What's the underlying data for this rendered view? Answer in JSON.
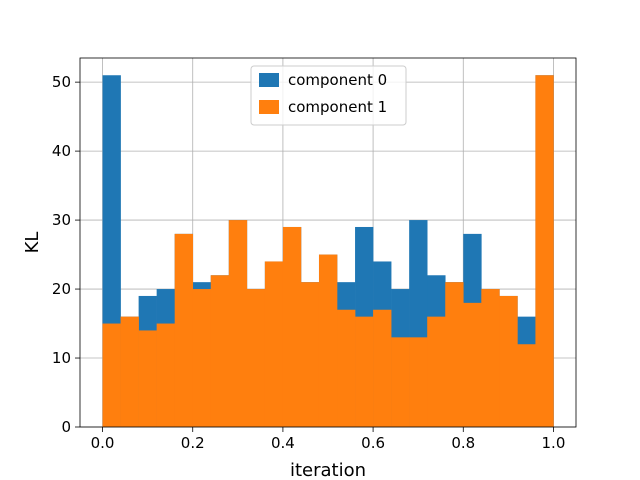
{
  "chart_data": {
    "type": "bar",
    "subtype": "overlapping-histogram",
    "xlabel": "iteration",
    "ylabel": "KL",
    "xlim": [
      -0.05,
      1.05
    ],
    "ylim": [
      0,
      53.5
    ],
    "xticks": [
      "0.0",
      "0.2",
      "0.4",
      "0.6",
      "0.8",
      "1.0"
    ],
    "yticks": [
      "0",
      "10",
      "20",
      "30",
      "40",
      "50"
    ],
    "grid": true,
    "legend": "top-center",
    "bin_edges": [
      0.0,
      0.04,
      0.08,
      0.12,
      0.16,
      0.2,
      0.24,
      0.28,
      0.32,
      0.36,
      0.4,
      0.44,
      0.48,
      0.52,
      0.56,
      0.6,
      0.64,
      0.68,
      0.72,
      0.76,
      0.8,
      0.84,
      0.88,
      0.92,
      0.96,
      1.0
    ],
    "series": [
      {
        "name": "component 0",
        "color": "#1f77b4",
        "values": [
          51,
          16,
          19,
          20,
          28,
          21,
          22,
          30,
          20,
          24,
          29,
          21,
          25,
          21,
          29,
          24,
          20,
          30,
          22,
          21,
          28,
          20,
          19,
          16,
          51
        ]
      },
      {
        "name": "component 1",
        "color": "#ff7f0e",
        "values": [
          15,
          16,
          14,
          15,
          28,
          20,
          22,
          30,
          20,
          24,
          29,
          21,
          25,
          17,
          16,
          17,
          13,
          13,
          16,
          21,
          18,
          20,
          19,
          12,
          51
        ]
      }
    ]
  }
}
